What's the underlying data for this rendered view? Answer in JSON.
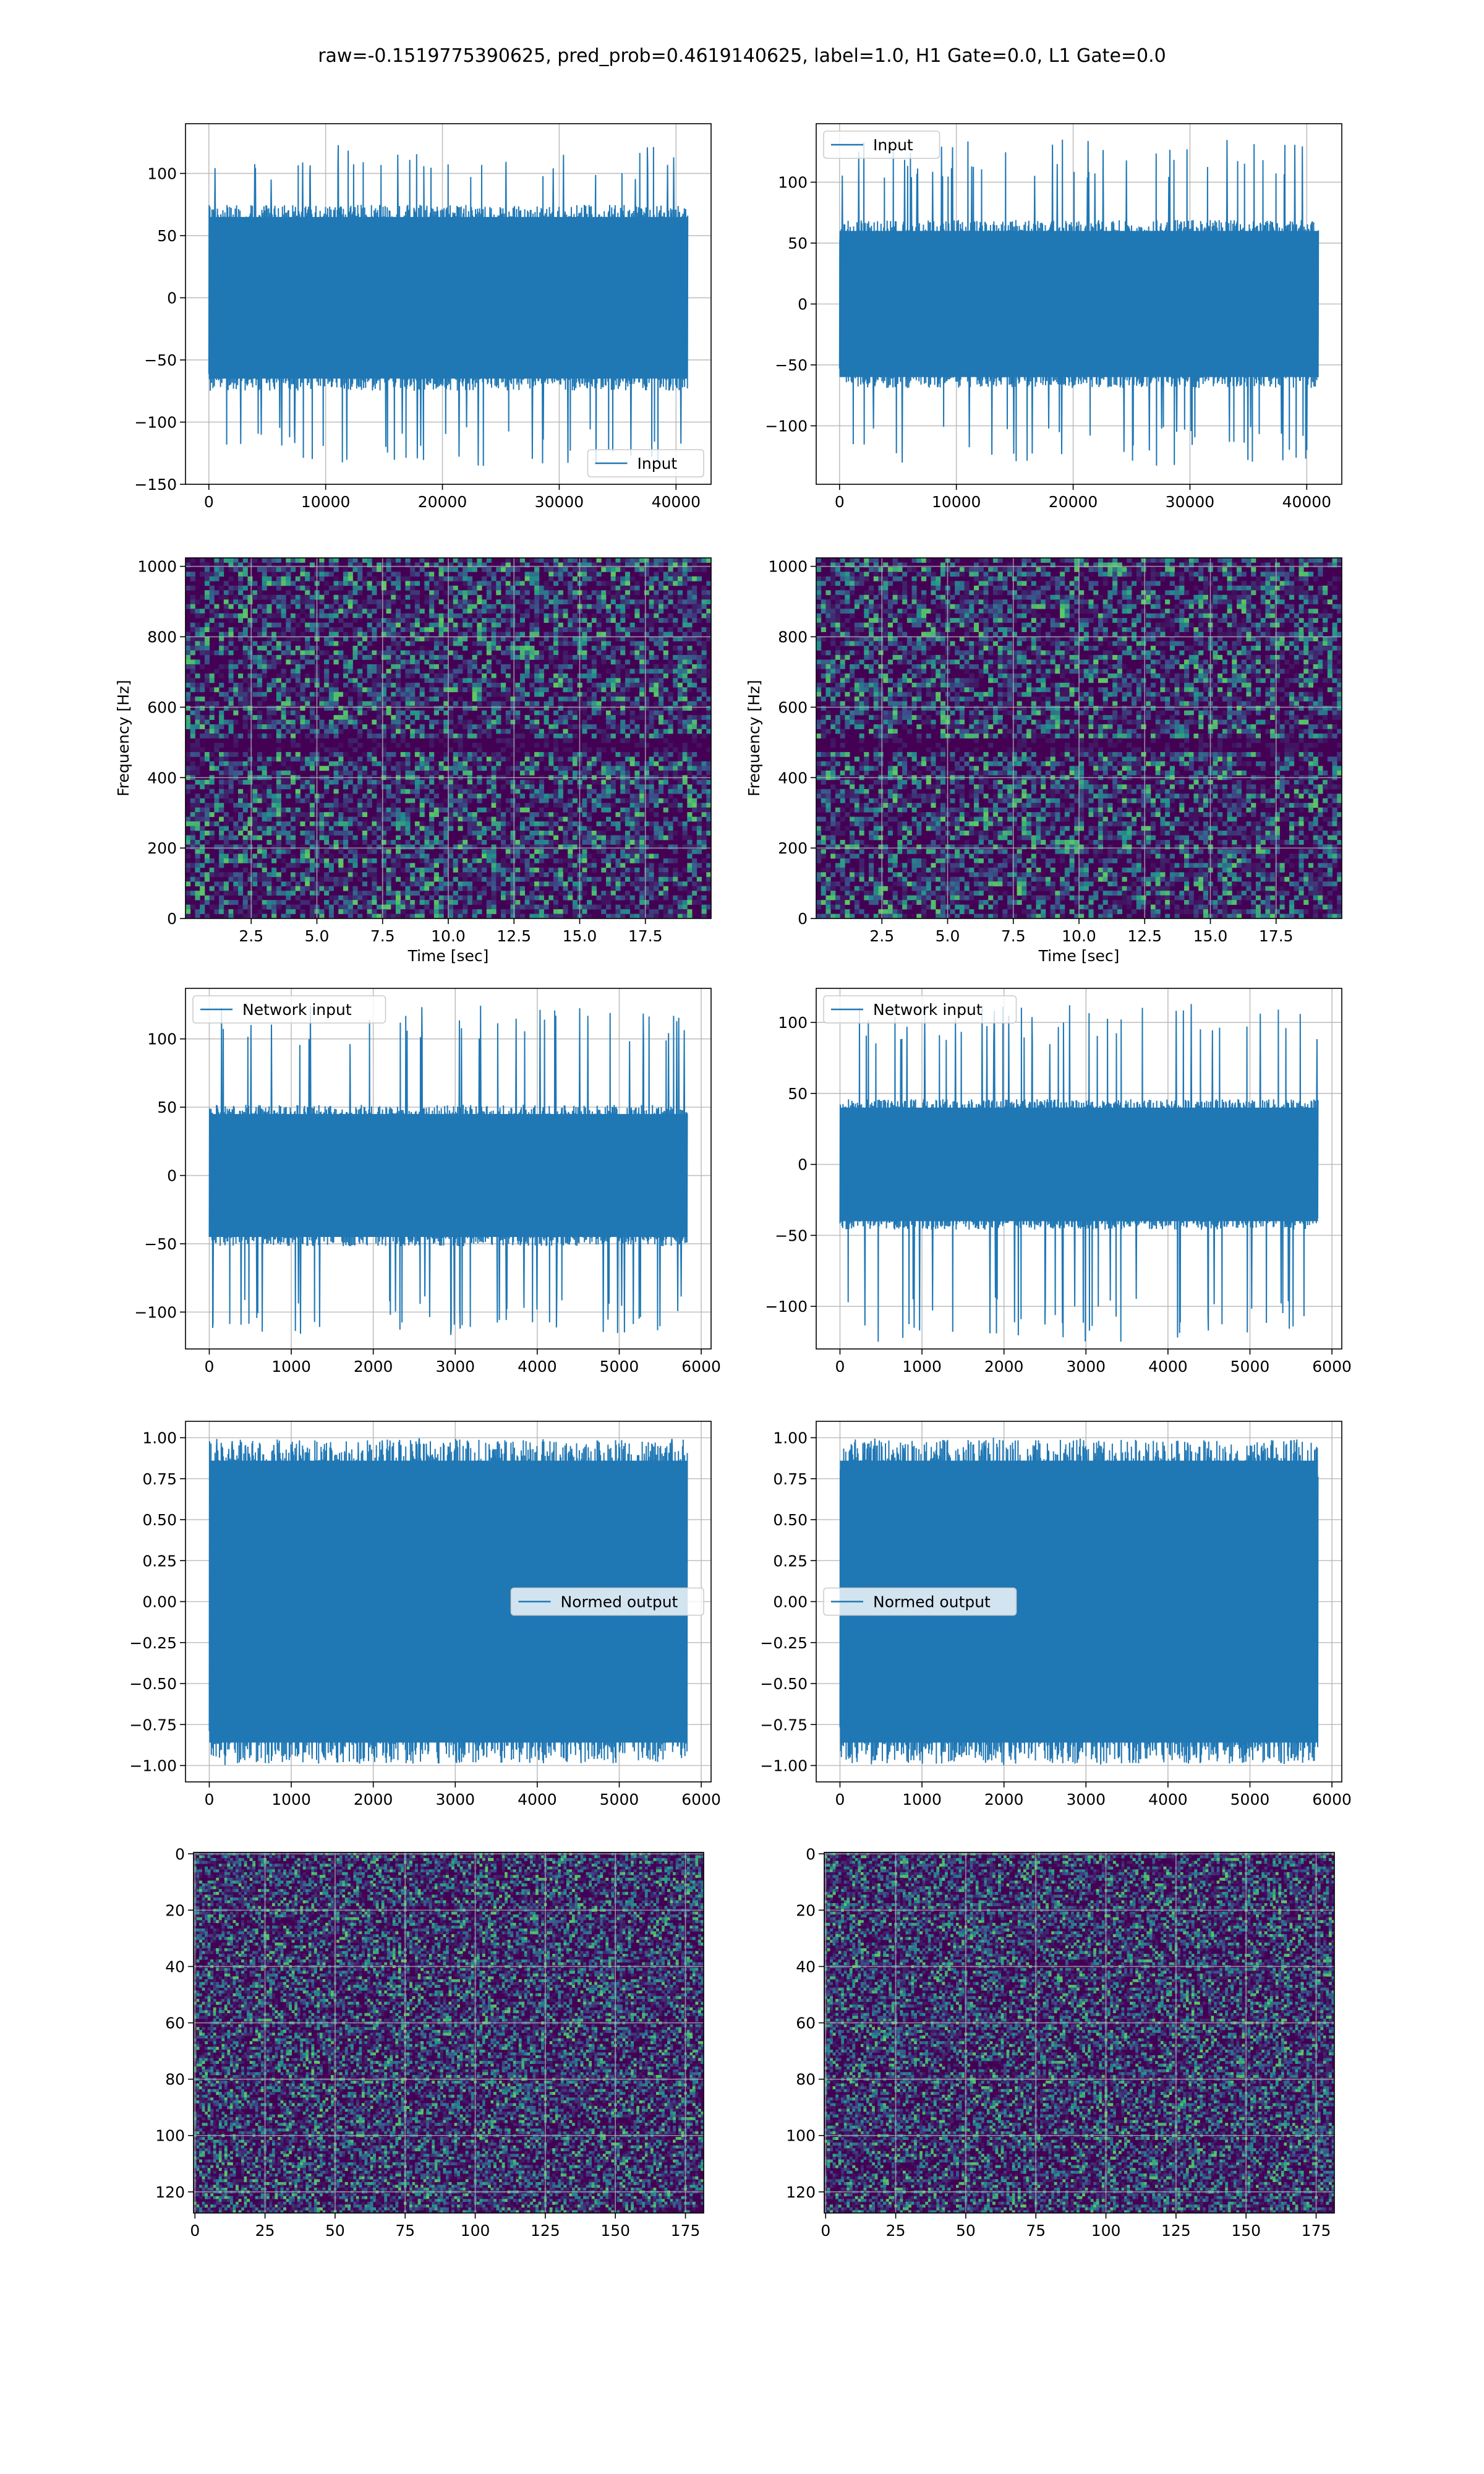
{
  "suptitle": "raw=-0.1519775390625, pred_prob=0.4619140625, label=1.0, H1 Gate=0.0, L1 Gate=0.0",
  "colors": {
    "line": "#1f77b4",
    "grid": "#b0b0b0",
    "viridis_low": "#440154"
  },
  "chart_data": [
    {
      "type": "line",
      "series": [
        {
          "name": "Input"
        }
      ],
      "legend": "lower-right",
      "x": [
        0,
        41000
      ],
      "xticks": [
        0,
        10000,
        20000,
        30000,
        40000
      ],
      "xlim": [
        -2000,
        43000
      ],
      "ylim": [
        -150,
        140
      ],
      "yticks": [
        -150,
        -100,
        -50,
        0,
        50,
        100
      ],
      "amplitude": {
        "core": 65,
        "peaks": [
          -138,
          125
        ]
      },
      "grid": true,
      "xlabel": "",
      "ylabel": ""
    },
    {
      "type": "line",
      "series": [
        {
          "name": "Input"
        }
      ],
      "legend": "upper-left",
      "x": [
        0,
        41000
      ],
      "xticks": [
        0,
        10000,
        20000,
        30000,
        40000
      ],
      "xlim": [
        -2000,
        43000
      ],
      "ylim": [
        -148,
        148
      ],
      "yticks": [
        -100,
        -50,
        0,
        50,
        100
      ],
      "amplitude": {
        "core": 60,
        "peaks": [
          -133,
          136
        ]
      },
      "grid": true,
      "xlabel": "",
      "ylabel": ""
    },
    {
      "type": "heatmap",
      "colormap": "viridis",
      "grid": true,
      "xlim": [
        0,
        20
      ],
      "xticks": [
        2.5,
        5.0,
        7.5,
        10.0,
        12.5,
        15.0,
        17.5
      ],
      "ylim": [
        0,
        1024
      ],
      "yticks": [
        0,
        200,
        400,
        600,
        800,
        1000
      ],
      "xlabel": "Time [sec]",
      "ylabel": "Frequency [Hz]"
    },
    {
      "type": "heatmap",
      "colormap": "viridis",
      "grid": true,
      "xlim": [
        0,
        20
      ],
      "xticks": [
        2.5,
        5.0,
        7.5,
        10.0,
        12.5,
        15.0,
        17.5
      ],
      "ylim": [
        0,
        1024
      ],
      "yticks": [
        0,
        200,
        400,
        600,
        800,
        1000
      ],
      "xlabel": "Time [sec]",
      "ylabel": "Frequency [Hz]"
    },
    {
      "type": "line",
      "series": [
        {
          "name": "Network input"
        }
      ],
      "legend": "upper-left",
      "x": [
        0,
        5830
      ],
      "xticks": [
        0,
        1000,
        2000,
        3000,
        4000,
        5000,
        6000
      ],
      "xlim": [
        -290,
        6120
      ],
      "ylim": [
        -127,
        137
      ],
      "yticks": [
        -100,
        -50,
        0,
        50,
        100
      ],
      "amplitude": {
        "core": 45,
        "peaks": [
          -117,
          126
        ]
      },
      "grid": true,
      "xlabel": "",
      "ylabel": ""
    },
    {
      "type": "line",
      "series": [
        {
          "name": "Network input"
        }
      ],
      "legend": "upper-left",
      "x": [
        0,
        5830
      ],
      "xticks": [
        0,
        1000,
        2000,
        3000,
        4000,
        5000,
        6000
      ],
      "xlim": [
        -290,
        6120
      ],
      "ylim": [
        -130,
        124
      ],
      "yticks": [
        -100,
        -50,
        0,
        50,
        100
      ],
      "amplitude": {
        "core": 40,
        "peaks": [
          -125,
          113
        ]
      },
      "grid": true,
      "xlabel": "",
      "ylabel": ""
    },
    {
      "type": "line",
      "series": [
        {
          "name": "Normed output"
        }
      ],
      "legend": "center-right",
      "x": [
        0,
        5830
      ],
      "xticks": [
        0,
        1000,
        2000,
        3000,
        4000,
        5000,
        6000
      ],
      "xlim": [
        -290,
        6120
      ],
      "ylim": [
        -1.1,
        1.1
      ],
      "yticks": [
        -1.0,
        -0.75,
        -0.5,
        -0.25,
        0.0,
        0.25,
        0.5,
        0.75,
        1.0
      ],
      "amplitude": {
        "core": 0.86,
        "peaks": [
          -1.0,
          1.0
        ]
      },
      "grid": true,
      "xlabel": "",
      "ylabel": ""
    },
    {
      "type": "line",
      "series": [
        {
          "name": "Normed output"
        }
      ],
      "legend": "center-left",
      "x": [
        0,
        5830
      ],
      "xticks": [
        0,
        1000,
        2000,
        3000,
        4000,
        5000,
        6000
      ],
      "xlim": [
        -290,
        6120
      ],
      "ylim": [
        -1.1,
        1.1
      ],
      "yticks": [
        -1.0,
        -0.75,
        -0.5,
        -0.25,
        0.0,
        0.25,
        0.5,
        0.75,
        1.0
      ],
      "amplitude": {
        "core": 0.86,
        "peaks": [
          -1.0,
          1.0
        ]
      },
      "grid": true,
      "xlabel": "",
      "ylabel": ""
    },
    {
      "type": "heatmap",
      "colormap": "viridis",
      "grid": true,
      "xlim": [
        -0.5,
        181.5
      ],
      "xticks": [
        0,
        25,
        50,
        75,
        100,
        125,
        150,
        175
      ],
      "ylim": [
        127.5,
        -0.5
      ],
      "yticks": [
        0,
        20,
        40,
        60,
        80,
        100,
        120
      ],
      "xlabel": "",
      "ylabel": ""
    },
    {
      "type": "heatmap",
      "colormap": "viridis",
      "grid": true,
      "xlim": [
        -0.5,
        181.5
      ],
      "xticks": [
        0,
        25,
        50,
        75,
        100,
        125,
        150,
        175
      ],
      "ylim": [
        127.5,
        -0.5
      ],
      "yticks": [
        0,
        20,
        40,
        60,
        80,
        100,
        120
      ],
      "xlabel": "",
      "ylabel": ""
    }
  ]
}
